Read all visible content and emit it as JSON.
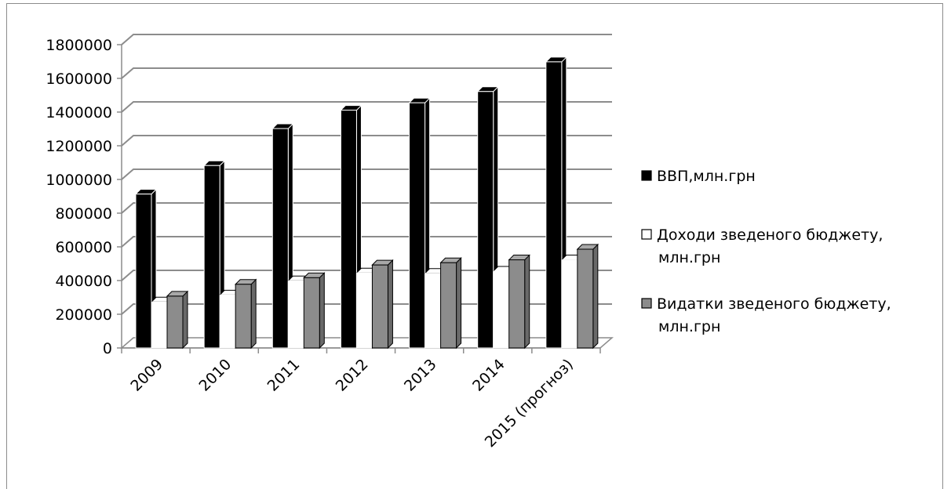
{
  "chart_data": {
    "type": "bar",
    "categories": [
      "2009",
      "2010",
      "2011",
      "2012",
      "2013",
      "2014",
      "2015 (прогноз)"
    ],
    "series": [
      {
        "name": "ВВП,млн.грн",
        "values": [
          913345,
          1082569,
          1302079,
          1411238,
          1454931,
          1522000,
          1698000
        ],
        "color": "#000000"
      },
      {
        "name": "Доходи зведеного бюджету, млн.грн",
        "values": [
          272967,
          314506,
          398554,
          445525,
          442788,
          456000,
          523000
        ],
        "color": "#ffffff"
      },
      {
        "name": "Видатки зведеного бюджету, млн.грн",
        "values": [
          307399,
          377842,
          416854,
          492454,
          505843,
          523000,
          586000
        ],
        "color": "#8c8c8c"
      }
    ],
    "legend_lines": [
      [
        "ВВП,млн.грн"
      ],
      [
        "Доходи зведеного бюджету,",
        "млн.грн"
      ],
      [
        "Видатки зведеного бюджету,",
        "млн.грн"
      ]
    ],
    "yticks": [
      "0",
      "200000",
      "400000",
      "600000",
      "800000",
      "1000000",
      "1200000",
      "1400000",
      "1600000",
      "1800000"
    ],
    "ylim": [
      0,
      1800000
    ],
    "grid": true,
    "legend": "right",
    "title": "",
    "xlabel": "",
    "ylabel": ""
  }
}
